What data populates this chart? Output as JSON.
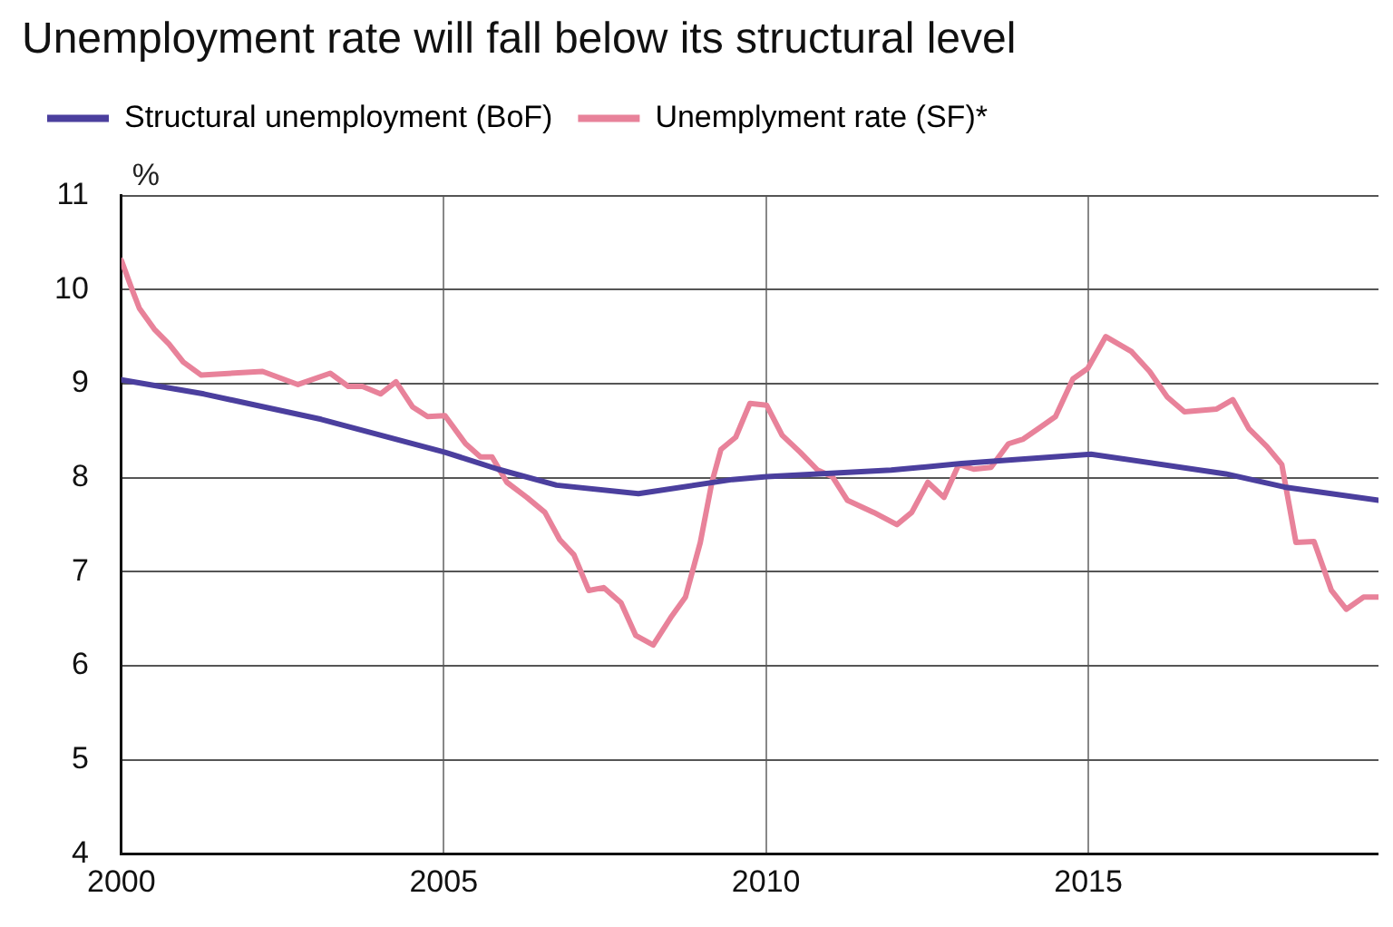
{
  "chart_data": {
    "type": "line",
    "title": "Unemployment rate will fall below its structural level",
    "ylabel": "%",
    "xlim": [
      2000,
      2019.5
    ],
    "xticks": [
      2000,
      2005,
      2010,
      2015
    ],
    "ylim": [
      4,
      11
    ],
    "yticks": [
      4,
      5,
      6,
      7,
      8,
      9,
      10,
      11
    ],
    "grid": true,
    "legend": "top left",
    "marker": "none",
    "line_style": "solid",
    "series": [
      {
        "name": "Structural unemployment (BoF)",
        "color": "#4b3f9e",
        "x": [
          2000,
          2001.28,
          2003.1,
          2005.02,
          2005.84,
          2006.75,
          2008.02,
          2009.48,
          2010.01,
          2011.94,
          2013.03,
          2015.04,
          2017.13,
          2018.04,
          2019.5
        ],
        "values": [
          9.04,
          8.89,
          8.62,
          8.27,
          8.09,
          7.92,
          7.83,
          7.98,
          8.01,
          8.08,
          8.15,
          8.25,
          8.04,
          7.9,
          7.76
        ]
      },
      {
        "name": "Unemplyment rate (SF)*",
        "color": "#e8829a",
        "x": [
          2000,
          2000.15,
          2000.28,
          2000.51,
          2000.74,
          2000.96,
          2001.24,
          2002.19,
          2002.74,
          2003.24,
          2003.52,
          2003.74,
          2004.02,
          2004.26,
          2004.52,
          2004.75,
          2005.02,
          2005.34,
          2005.57,
          2005.75,
          2005.98,
          2006.29,
          2006.57,
          2006.8,
          2007.02,
          2007.25,
          2007.48,
          2007.75,
          2007.98,
          2008.25,
          2008.52,
          2008.75,
          2008.98,
          2009.16,
          2009.3,
          2009.53,
          2009.75,
          2010.01,
          2010.25,
          2010.53,
          2010.8,
          2011.03,
          2011.26,
          2011.67,
          2012.03,
          2012.26,
          2012.51,
          2012.76,
          2012.99,
          2013.22,
          2013.49,
          2013.76,
          2013.99,
          2014.22,
          2014.49,
          2014.76,
          2014.99,
          2015.27,
          2015.67,
          2015.95,
          2016.22,
          2016.49,
          2016.99,
          2017.24,
          2017.49,
          2017.77,
          2018.0,
          2018.22,
          2018.5,
          2018.77,
          2019.0,
          2019.27,
          2019.5
        ],
        "values": [
          10.31,
          10.03,
          9.8,
          9.58,
          9.42,
          9.23,
          9.09,
          9.13,
          8.99,
          9.11,
          8.97,
          8.97,
          8.89,
          9.02,
          8.75,
          8.65,
          8.66,
          8.36,
          8.22,
          8.22,
          7.95,
          7.79,
          7.63,
          7.34,
          7.18,
          6.8,
          6.83,
          6.67,
          6.32,
          6.22,
          6.51,
          6.73,
          7.31,
          7.95,
          8.3,
          8.43,
          8.79,
          8.77,
          8.45,
          8.27,
          8.08,
          8.01,
          7.76,
          7.63,
          7.5,
          7.63,
          7.95,
          7.79,
          8.14,
          8.09,
          8.11,
          8.36,
          8.41,
          8.52,
          8.65,
          9.05,
          9.16,
          9.5,
          9.34,
          9.13,
          8.86,
          8.7,
          8.73,
          8.83,
          8.52,
          8.33,
          8.14,
          7.31,
          7.32,
          6.8,
          6.6,
          6.73,
          6.73
        ]
      }
    ]
  }
}
